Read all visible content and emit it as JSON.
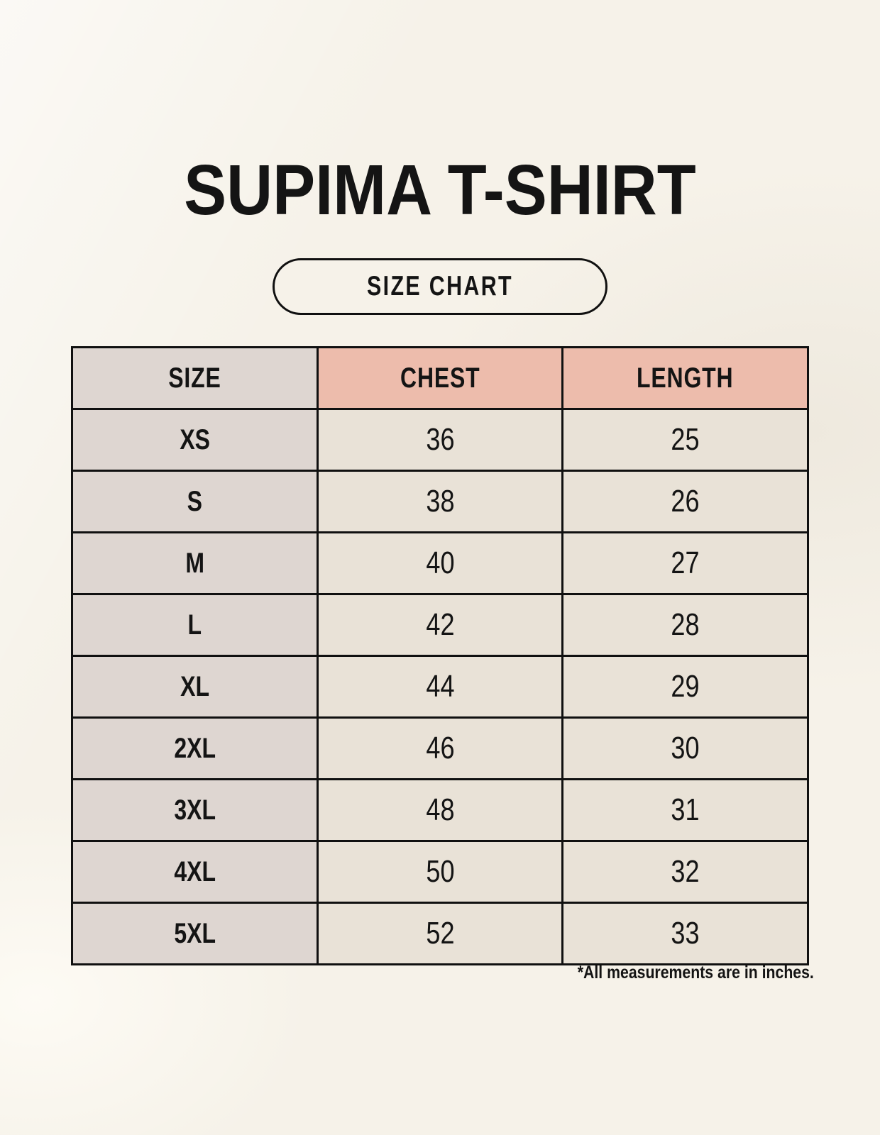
{
  "header": {
    "title": "SUPIMA T-SHIRT",
    "badge_label": "SIZE CHART"
  },
  "footnote": "*All measurements are in inches.",
  "colors": {
    "background": "#f6f2e9",
    "header_size_bg": "#ded6d1",
    "header_measure_bg": "#edbcac",
    "row_size_bg": "#ded6d1",
    "row_value_bg": "#e9e2d7",
    "border": "#101010",
    "text": "#141414"
  },
  "chart_data": {
    "type": "table",
    "title": "SUPIMA T-SHIRT",
    "subtitle": "SIZE CHART",
    "columns": [
      "SIZE",
      "CHEST",
      "LENGTH"
    ],
    "rows": [
      [
        "XS",
        "36",
        "25"
      ],
      [
        "S",
        "38",
        "26"
      ],
      [
        "M",
        "40",
        "27"
      ],
      [
        "L",
        "42",
        "28"
      ],
      [
        "XL",
        "44",
        "29"
      ],
      [
        "2XL",
        "46",
        "30"
      ],
      [
        "3XL",
        "48",
        "31"
      ],
      [
        "4XL",
        "50",
        "32"
      ],
      [
        "5XL",
        "52",
        "33"
      ]
    ],
    "units_note": "*All measurements are in inches.",
    "units": "inches"
  }
}
